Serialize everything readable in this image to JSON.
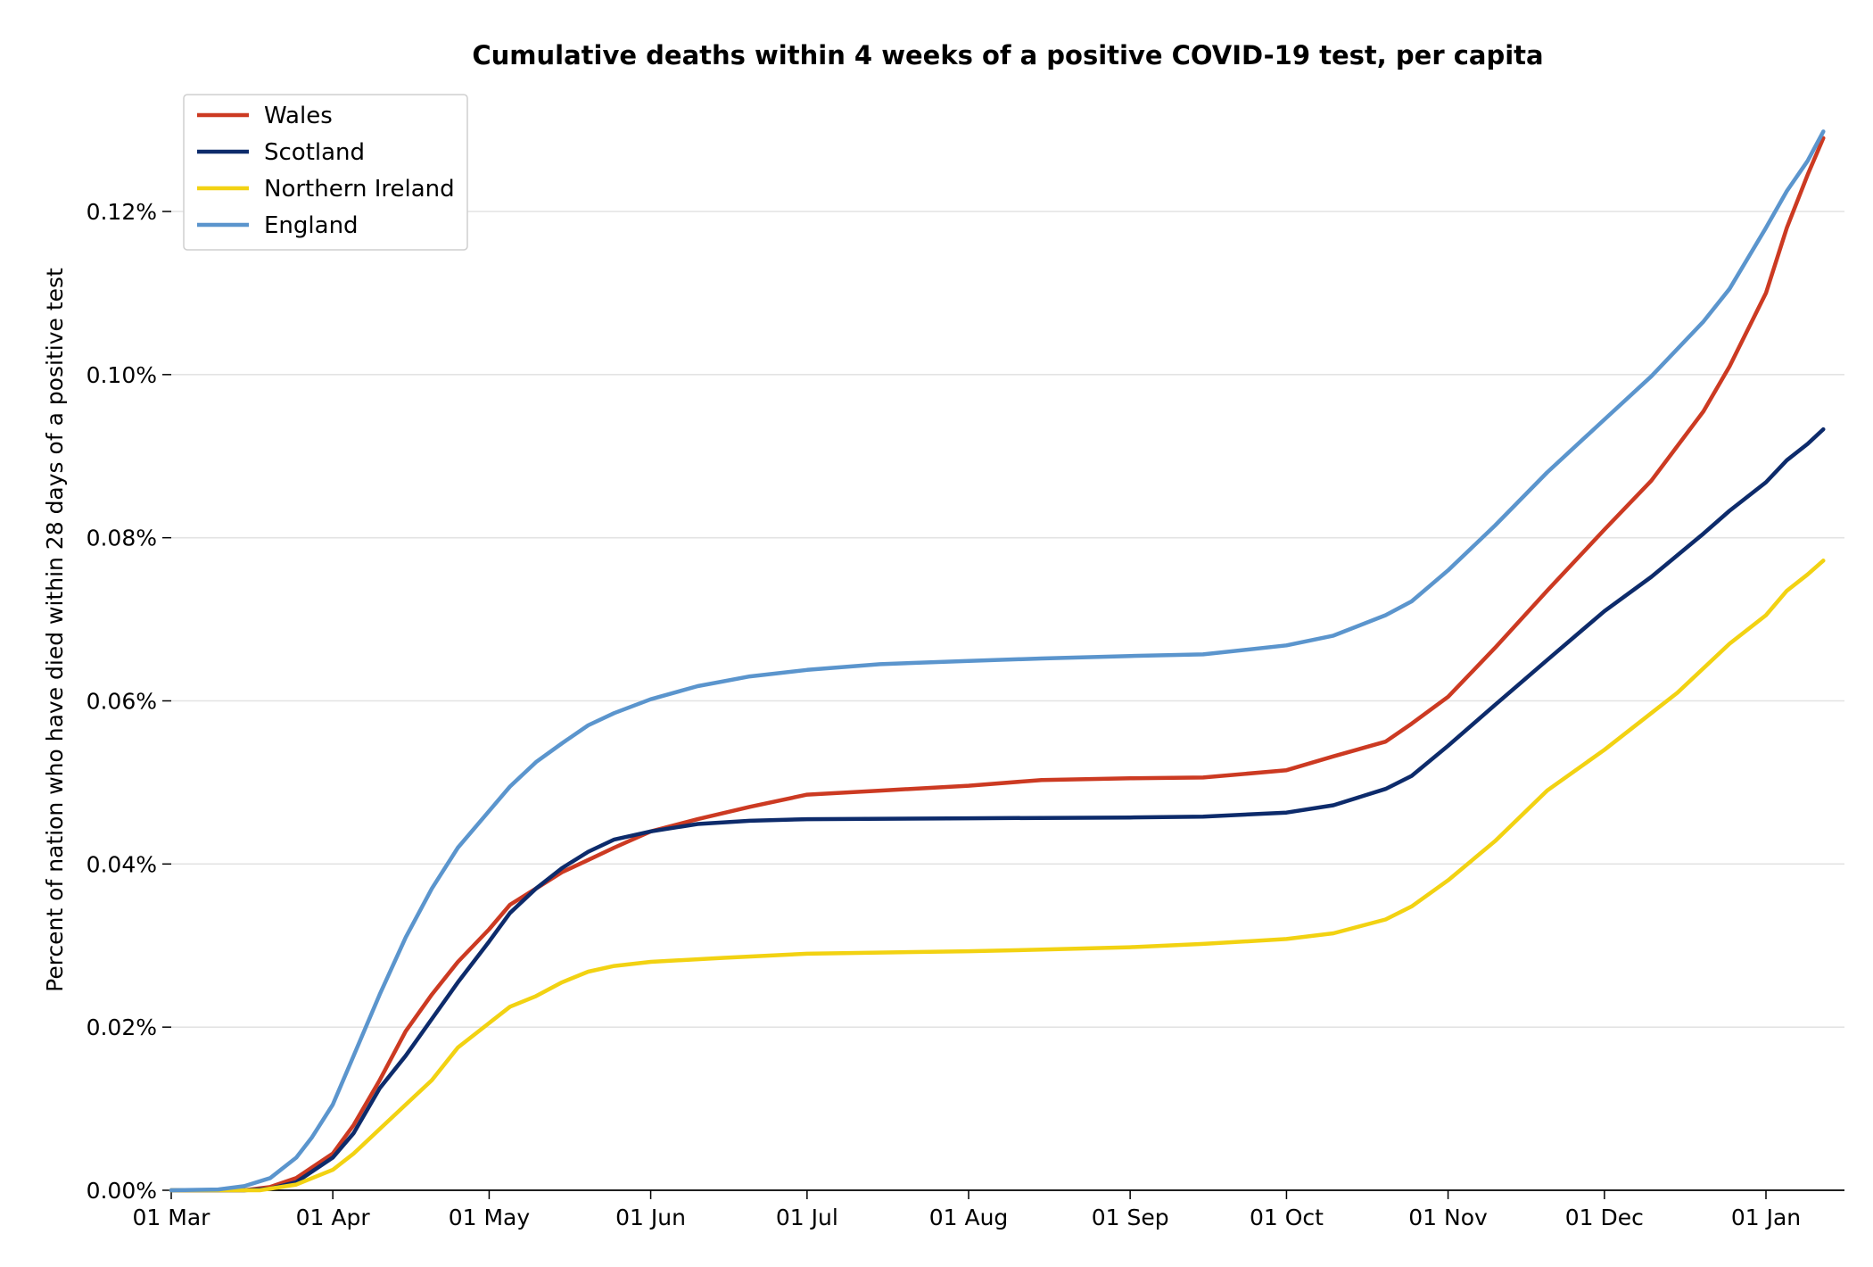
{
  "chart_data": {
    "type": "line",
    "title": "Cumulative deaths within 4 weeks of a positive COVID-19 test, per capita",
    "xlabel": "",
    "ylabel": "Percent of nation who have died within 28 days of a positive test",
    "x_ticks": [
      "01 Mar",
      "01 Apr",
      "01 May",
      "01 Jun",
      "01 Jul",
      "01 Aug",
      "01 Sep",
      "01 Oct",
      "01 Nov",
      "01 Dec",
      "01 Jan"
    ],
    "x_tick_dates": [
      "2020-03-01",
      "2020-04-01",
      "2020-05-01",
      "2020-06-01",
      "2020-07-01",
      "2020-08-01",
      "2020-09-01",
      "2020-10-01",
      "2020-11-01",
      "2020-12-01",
      "2021-01-01"
    ],
    "xlim": [
      "2020-03-01",
      "2021-01-12"
    ],
    "y_ticks": [
      "0.00%",
      "0.02%",
      "0.04%",
      "0.06%",
      "0.08%",
      "0.10%",
      "0.12%"
    ],
    "ylim": [
      0,
      0.1345
    ],
    "y_unit": "%",
    "grid": "horizontal",
    "legend_position": "top-left",
    "series": [
      {
        "name": "Wales",
        "color": "#cc3a22",
        "points": [
          [
            "2020-03-01",
            0
          ],
          [
            "2020-03-15",
            0
          ],
          [
            "2020-03-20",
            0.0004
          ],
          [
            "2020-03-25",
            0.0015
          ],
          [
            "2020-04-01",
            0.0045
          ],
          [
            "2020-04-05",
            0.008
          ],
          [
            "2020-04-10",
            0.0135
          ],
          [
            "2020-04-15",
            0.0195
          ],
          [
            "2020-04-20",
            0.024
          ],
          [
            "2020-04-25",
            0.028
          ],
          [
            "2020-05-01",
            0.032
          ],
          [
            "2020-05-05",
            0.035
          ],
          [
            "2020-05-10",
            0.037
          ],
          [
            "2020-05-15",
            0.039
          ],
          [
            "2020-05-20",
            0.0405
          ],
          [
            "2020-05-25",
            0.042
          ],
          [
            "2020-06-01",
            0.044
          ],
          [
            "2020-06-10",
            0.0455
          ],
          [
            "2020-06-20",
            0.047
          ],
          [
            "2020-07-01",
            0.0485
          ],
          [
            "2020-07-15",
            0.049
          ],
          [
            "2020-08-01",
            0.0496
          ],
          [
            "2020-08-15",
            0.0503
          ],
          [
            "2020-09-01",
            0.0505
          ],
          [
            "2020-09-15",
            0.0506
          ],
          [
            "2020-10-01",
            0.0515
          ],
          [
            "2020-10-10",
            0.0532
          ],
          [
            "2020-10-20",
            0.055
          ],
          [
            "2020-10-25",
            0.0572
          ],
          [
            "2020-11-01",
            0.0605
          ],
          [
            "2020-11-10",
            0.0665
          ],
          [
            "2020-11-20",
            0.0735
          ],
          [
            "2020-12-01",
            0.081
          ],
          [
            "2020-12-10",
            0.087
          ],
          [
            "2020-12-20",
            0.0955
          ],
          [
            "2020-12-25",
            0.101
          ],
          [
            "2021-01-01",
            0.11
          ],
          [
            "2021-01-05",
            0.118
          ],
          [
            "2021-01-09",
            0.1245
          ],
          [
            "2021-01-12",
            0.129
          ]
        ]
      },
      {
        "name": "Scotland",
        "color": "#0d2b6b",
        "points": [
          [
            "2020-03-01",
            0
          ],
          [
            "2020-03-15",
            0
          ],
          [
            "2020-03-20",
            0.0002
          ],
          [
            "2020-03-25",
            0.001
          ],
          [
            "2020-04-01",
            0.004
          ],
          [
            "2020-04-05",
            0.007
          ],
          [
            "2020-04-10",
            0.0125
          ],
          [
            "2020-04-15",
            0.0165
          ],
          [
            "2020-04-20",
            0.021
          ],
          [
            "2020-04-25",
            0.0255
          ],
          [
            "2020-05-01",
            0.0305
          ],
          [
            "2020-05-05",
            0.034
          ],
          [
            "2020-05-10",
            0.037
          ],
          [
            "2020-05-15",
            0.0395
          ],
          [
            "2020-05-20",
            0.0415
          ],
          [
            "2020-05-25",
            0.043
          ],
          [
            "2020-06-01",
            0.044
          ],
          [
            "2020-06-10",
            0.0449
          ],
          [
            "2020-06-20",
            0.0453
          ],
          [
            "2020-07-01",
            0.0455
          ],
          [
            "2020-08-01",
            0.0456
          ],
          [
            "2020-09-01",
            0.0457
          ],
          [
            "2020-09-15",
            0.0458
          ],
          [
            "2020-10-01",
            0.0463
          ],
          [
            "2020-10-10",
            0.0472
          ],
          [
            "2020-10-20",
            0.0492
          ],
          [
            "2020-10-25",
            0.0508
          ],
          [
            "2020-11-01",
            0.0545
          ],
          [
            "2020-11-10",
            0.0595
          ],
          [
            "2020-11-20",
            0.065
          ],
          [
            "2020-12-01",
            0.071
          ],
          [
            "2020-12-10",
            0.0752
          ],
          [
            "2020-12-20",
            0.0805
          ],
          [
            "2020-12-25",
            0.0833
          ],
          [
            "2021-01-01",
            0.0868
          ],
          [
            "2021-01-05",
            0.0895
          ],
          [
            "2021-01-09",
            0.0915
          ],
          [
            "2021-01-12",
            0.0933
          ]
        ]
      },
      {
        "name": "Northern Ireland",
        "color": "#f2d212",
        "points": [
          [
            "2020-03-01",
            0
          ],
          [
            "2020-03-18",
            0
          ],
          [
            "2020-03-25",
            0.0007
          ],
          [
            "2020-04-01",
            0.0025
          ],
          [
            "2020-04-05",
            0.0045
          ],
          [
            "2020-04-10",
            0.0075
          ],
          [
            "2020-04-15",
            0.0105
          ],
          [
            "2020-04-20",
            0.0135
          ],
          [
            "2020-04-25",
            0.0175
          ],
          [
            "2020-05-01",
            0.0205
          ],
          [
            "2020-05-05",
            0.0225
          ],
          [
            "2020-05-10",
            0.0238
          ],
          [
            "2020-05-15",
            0.0255
          ],
          [
            "2020-05-20",
            0.0268
          ],
          [
            "2020-05-25",
            0.0275
          ],
          [
            "2020-06-01",
            0.028
          ],
          [
            "2020-06-15",
            0.0285
          ],
          [
            "2020-07-01",
            0.029
          ],
          [
            "2020-08-01",
            0.0293
          ],
          [
            "2020-08-15",
            0.0295
          ],
          [
            "2020-09-01",
            0.0298
          ],
          [
            "2020-09-15",
            0.0302
          ],
          [
            "2020-10-01",
            0.0308
          ],
          [
            "2020-10-10",
            0.0315
          ],
          [
            "2020-10-20",
            0.0332
          ],
          [
            "2020-10-25",
            0.0348
          ],
          [
            "2020-11-01",
            0.038
          ],
          [
            "2020-11-10",
            0.0428
          ],
          [
            "2020-11-20",
            0.049
          ],
          [
            "2020-12-01",
            0.054
          ],
          [
            "2020-12-10",
            0.0585
          ],
          [
            "2020-12-15",
            0.061
          ],
          [
            "2020-12-25",
            0.067
          ],
          [
            "2021-01-01",
            0.0705
          ],
          [
            "2021-01-05",
            0.0735
          ],
          [
            "2021-01-09",
            0.0755
          ],
          [
            "2021-01-12",
            0.0772
          ]
        ]
      },
      {
        "name": "England",
        "color": "#5b95cd",
        "points": [
          [
            "2020-03-01",
            0
          ],
          [
            "2020-03-10",
            0.0001
          ],
          [
            "2020-03-15",
            0.0005
          ],
          [
            "2020-03-20",
            0.0015
          ],
          [
            "2020-03-25",
            0.004
          ],
          [
            "2020-03-28",
            0.0065
          ],
          [
            "2020-04-01",
            0.0105
          ],
          [
            "2020-04-05",
            0.0165
          ],
          [
            "2020-04-10",
            0.024
          ],
          [
            "2020-04-15",
            0.031
          ],
          [
            "2020-04-20",
            0.037
          ],
          [
            "2020-04-25",
            0.042
          ],
          [
            "2020-05-01",
            0.0465
          ],
          [
            "2020-05-05",
            0.0495
          ],
          [
            "2020-05-10",
            0.0525
          ],
          [
            "2020-05-15",
            0.0548
          ],
          [
            "2020-05-20",
            0.057
          ],
          [
            "2020-05-25",
            0.0585
          ],
          [
            "2020-06-01",
            0.0602
          ],
          [
            "2020-06-10",
            0.0618
          ],
          [
            "2020-06-20",
            0.063
          ],
          [
            "2020-07-01",
            0.0638
          ],
          [
            "2020-07-15",
            0.0645
          ],
          [
            "2020-08-01",
            0.0649
          ],
          [
            "2020-08-15",
            0.0652
          ],
          [
            "2020-09-01",
            0.0655
          ],
          [
            "2020-09-15",
            0.0657
          ],
          [
            "2020-10-01",
            0.0668
          ],
          [
            "2020-10-10",
            0.068
          ],
          [
            "2020-10-20",
            0.0705
          ],
          [
            "2020-10-25",
            0.0722
          ],
          [
            "2020-11-01",
            0.076
          ],
          [
            "2020-11-10",
            0.0815
          ],
          [
            "2020-11-20",
            0.088
          ],
          [
            "2020-12-01",
            0.0945
          ],
          [
            "2020-12-10",
            0.0998
          ],
          [
            "2020-12-20",
            0.1065
          ],
          [
            "2020-12-25",
            0.1105
          ],
          [
            "2021-01-01",
            0.118
          ],
          [
            "2021-01-05",
            0.1225
          ],
          [
            "2021-01-09",
            0.1262
          ],
          [
            "2021-01-12",
            0.1298
          ]
        ]
      }
    ]
  }
}
